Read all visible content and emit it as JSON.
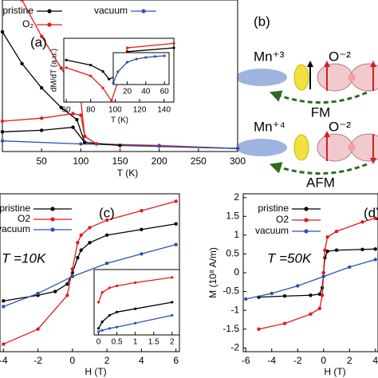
{
  "chart_data": [
    {
      "type": "line",
      "label": "(a)",
      "xlabel": "T (K)",
      "xlim": [
        0,
        300
      ],
      "ylim": [
        0,
        1
      ],
      "xticks": [
        50,
        100,
        150,
        200,
        250,
        300
      ],
      "series": [
        {
          "name": "pristine",
          "color": "#000000",
          "x": [
            0,
            25,
            50,
            75,
            95,
            105,
            150,
            300
          ],
          "values": [
            0.79,
            0.58,
            0.42,
            0.29,
            0.21,
            0.06,
            0.04,
            0.02
          ]
        },
        {
          "name": "O₂",
          "color": "#e41a1c",
          "x": [
            25,
            50,
            75,
            95,
            100,
            105,
            120,
            200,
            300
          ],
          "values": [
            1.0,
            0.76,
            0.55,
            0.39,
            0.34,
            0.1,
            0.05,
            0.04,
            0.02
          ]
        },
        {
          "name": "vacuum",
          "color": "#3050b0",
          "x": [
            0,
            100,
            200,
            300
          ],
          "values": [
            0.07,
            0.05,
            0.035,
            0.02
          ]
        },
        {
          "color": "#000000",
          "x": [
            0,
            50,
            90,
            105,
            150
          ],
          "values": [
            0.13,
            0.14,
            0.16,
            0.06,
            0.04
          ]
        },
        {
          "color": "#e41a1c",
          "x": [
            0,
            50,
            90,
            100,
            105,
            120
          ],
          "values": [
            0.2,
            0.22,
            0.25,
            0.24,
            0.1,
            0.05
          ]
        }
      ]
    },
    {
      "type": "line",
      "xlabel": "T (K)",
      "ylabel": "dM/dT (a.u.)",
      "xlim": [
        58,
        148
      ],
      "ylim": [
        0,
        1
      ],
      "xticks": [
        60,
        80,
        100,
        120,
        140
      ],
      "series": [
        {
          "color": "#000000",
          "x": [
            60,
            80,
            90,
            95,
            100,
            110,
            148
          ],
          "values": [
            0.66,
            0.58,
            0.48,
            0.36,
            0.4,
            0.79,
            0.85
          ]
        },
        {
          "color": "#e41a1c",
          "x": [
            60,
            80,
            90,
            97,
            103,
            110,
            148
          ],
          "values": [
            0.54,
            0.41,
            0.22,
            0.02,
            0.36,
            0.85,
            0.92
          ]
        }
      ]
    },
    {
      "type": "line",
      "xlim": [
        5,
        65
      ],
      "ylim": [
        0,
        1
      ],
      "xticks": [
        20,
        40,
        60
      ],
      "series": [
        {
          "color": "#3050b0",
          "x": [
            5,
            10,
            20,
            30,
            40,
            50,
            60
          ],
          "values": [
            0.05,
            0.4,
            0.7,
            0.8,
            0.85,
            0.88,
            0.9
          ]
        }
      ]
    },
    {
      "type": "line",
      "label": "(c)",
      "annotation": "T =10K",
      "xlabel": "H (T)",
      "xlim": [
        -4.2,
        6.2
      ],
      "ylim": [
        -2.1,
        2.1
      ],
      "xticks": [
        -4,
        -2,
        0,
        2,
        4,
        6
      ],
      "series": [
        {
          "name": "pristine",
          "color": "#000000",
          "x": [
            -4,
            -2,
            -1,
            -0.3,
            0,
            0.3,
            0.5,
            1,
            2,
            4,
            6
          ],
          "values": [
            -0.75,
            -0.6,
            -0.5,
            -0.3,
            0,
            0.4,
            0.6,
            0.8,
            1.0,
            1.15,
            1.3
          ]
        },
        {
          "name": "O2",
          "color": "#e41a1c",
          "x": [
            -4,
            -2,
            -0.3,
            0,
            0.3,
            0.5,
            1,
            2,
            4,
            6
          ],
          "values": [
            -1.9,
            -1.5,
            -0.6,
            0.1,
            0.8,
            1.0,
            1.2,
            1.4,
            1.65,
            1.9
          ]
        },
        {
          "name": "vacuum",
          "color": "#3050b0",
          "x": [
            -4,
            -2,
            0,
            2,
            4,
            6
          ],
          "values": [
            -0.9,
            -0.55,
            -0.1,
            0.25,
            0.5,
            0.75
          ]
        }
      ]
    },
    {
      "type": "line",
      "xlim": [
        -0.12,
        2.2
      ],
      "ylim": [
        0,
        1
      ],
      "xticks": [
        0,
        0.5,
        1,
        1.5,
        2
      ],
      "series": [
        {
          "color": "#e41a1c",
          "x": [
            0,
            0.1,
            0.3,
            0.5,
            1,
            2
          ],
          "values": [
            0.5,
            0.65,
            0.72,
            0.75,
            0.8,
            0.88
          ]
        },
        {
          "color": "#000000",
          "x": [
            0,
            0.1,
            0.3,
            0.5,
            1,
            2
          ],
          "values": [
            0.1,
            0.2,
            0.3,
            0.35,
            0.4,
            0.5
          ]
        },
        {
          "color": "#3050b0",
          "x": [
            0,
            0.1,
            0.3,
            0.5,
            1,
            2
          ],
          "values": [
            0.05,
            0.07,
            0.1,
            0.12,
            0.18,
            0.3
          ]
        }
      ]
    },
    {
      "type": "line",
      "label": "(d)",
      "annotation": "T =50K",
      "xlabel": "H (T)",
      "ylabel": "M (10⁸ A/m)",
      "xlim": [
        -6.2,
        4.2
      ],
      "ylim": [
        -2.1,
        2.1
      ],
      "xticks": [
        -6,
        -4,
        -2,
        0,
        2,
        4
      ],
      "yticks": [
        2,
        1.5,
        1,
        0.5,
        0,
        -0.5,
        -1,
        -1.5,
        -2
      ],
      "series": [
        {
          "name": "pristine",
          "color": "#000000",
          "x": [
            -5,
            -3,
            -1,
            -0.3,
            -0.1,
            0,
            0.1,
            0.3,
            1,
            3,
            4
          ],
          "values": [
            -0.65,
            -0.62,
            -0.6,
            -0.57,
            -0.4,
            0,
            0.4,
            0.57,
            0.6,
            0.62,
            0.63
          ]
        },
        {
          "name": "O2",
          "color": "#e41a1c",
          "x": [
            -5,
            -3,
            -1,
            -0.3,
            -0.1,
            0,
            0.1,
            0.3,
            1,
            3,
            4
          ],
          "values": [
            -1.5,
            -1.35,
            -1.1,
            -0.95,
            -0.6,
            0,
            0.6,
            0.95,
            1.1,
            1.35,
            1.45
          ]
        },
        {
          "name": "vacuum",
          "color": "#3050b0",
          "x": [
            -6,
            -4,
            -2,
            0,
            2,
            4
          ],
          "values": [
            -0.7,
            -0.55,
            -0.35,
            -0.1,
            0.15,
            0.35
          ]
        }
      ]
    }
  ],
  "diagram": {
    "label": "(b)",
    "rows": [
      {
        "cation": "Mn⁺³",
        "anion": "O⁻²",
        "coupling": "FM"
      },
      {
        "cation": "Mn⁺⁴",
        "anion": "O⁻²",
        "coupling": "AFM"
      }
    ]
  }
}
